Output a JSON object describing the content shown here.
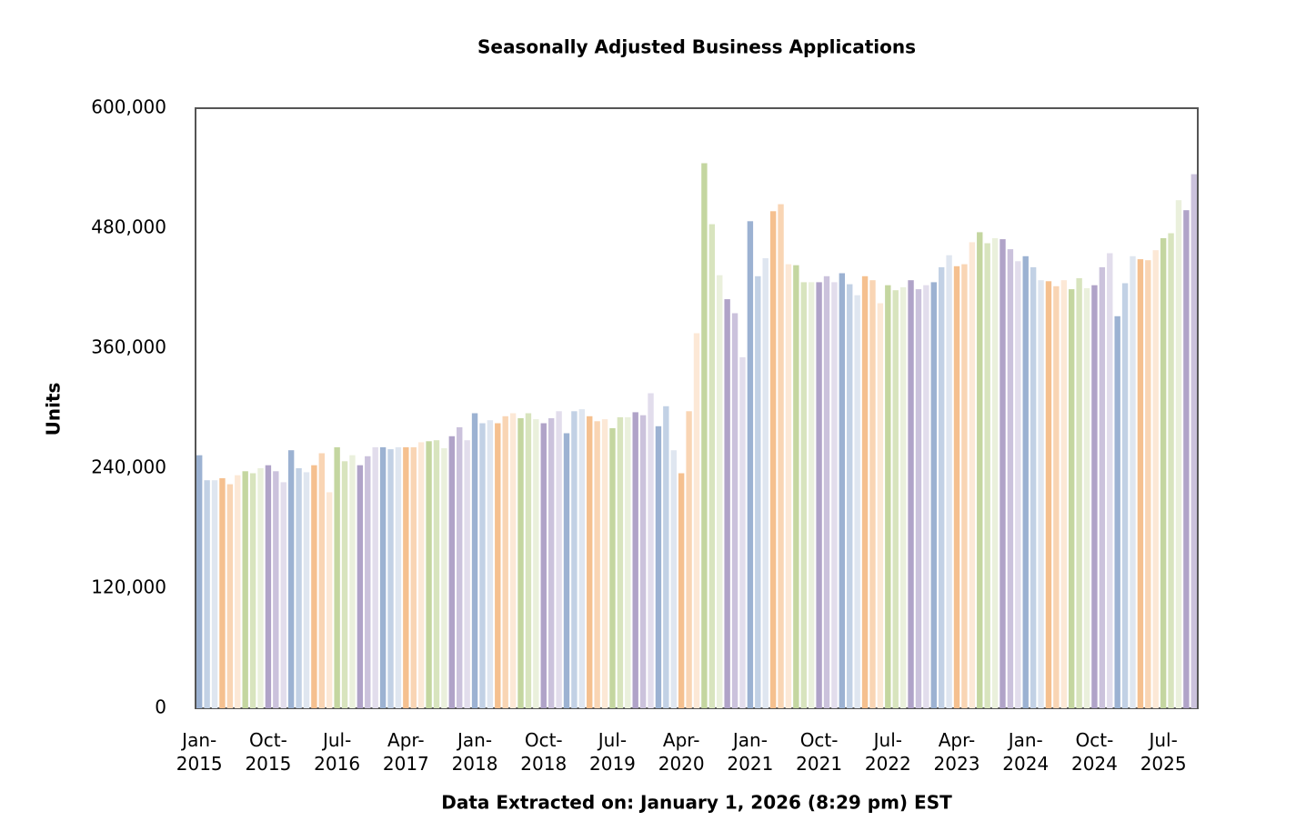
{
  "chart_data": {
    "type": "bar",
    "title": "Seasonally Adjusted Business Applications",
    "y_label": "Units",
    "footer": "Data Extracted on: January 1, 2026 (8:29 pm) EST",
    "ylim": [
      0,
      600000
    ],
    "yticks": [
      0,
      {
        "value": 120000,
        "label": "120,000"
      },
      {
        "value": 240000,
        "label": "240,000"
      },
      {
        "value": 360000,
        "label": "360,000"
      },
      {
        "value": 480000,
        "label": "480,000"
      },
      {
        "value": 600000,
        "label": "600,000"
      }
    ],
    "colors": [
      "#9cb2d2",
      "#c2d1e5",
      "#dfe6f0",
      "#f5c08f",
      "#f9d5b4",
      "#fce8d6",
      "#c4d6a0",
      "#d8e4be",
      "#eaf0dc",
      "#b0a3c8",
      "#cbc2dc",
      "#e2ddec"
    ],
    "categories": [
      "Jan-2015",
      null,
      null,
      null,
      null,
      null,
      null,
      null,
      null,
      "Oct-2015",
      null,
      null,
      null,
      null,
      null,
      null,
      null,
      null,
      "Jul-2016",
      null,
      null,
      null,
      null,
      null,
      null,
      null,
      null,
      "Apr-2017",
      null,
      null,
      null,
      null,
      null,
      null,
      null,
      null,
      "Jan-2018",
      null,
      null,
      null,
      null,
      null,
      null,
      null,
      null,
      "Oct-2018",
      null,
      null,
      null,
      null,
      null,
      null,
      null,
      null,
      "Jul-2019",
      null,
      null,
      null,
      null,
      null,
      null,
      null,
      null,
      "Apr-2020",
      null,
      null,
      null,
      null,
      null,
      null,
      null,
      null,
      "Jan-2021",
      null,
      null,
      null,
      null,
      null,
      null,
      null,
      null,
      "Oct-2021",
      null,
      null,
      null,
      null,
      null,
      null,
      null,
      null,
      "Jul-2022",
      null,
      null,
      null,
      null,
      null,
      null,
      null,
      null,
      "Apr-2023",
      null,
      null,
      null,
      null,
      null,
      null,
      null,
      null,
      "Jan-2024",
      null,
      null,
      null,
      null,
      null,
      null,
      null,
      null,
      "Oct-2024",
      null,
      null,
      null,
      null,
      null,
      null,
      null,
      null,
      "Jul-2025",
      null,
      null,
      null,
      null
    ],
    "values": [
      253000,
      228000,
      228000,
      230000,
      224000,
      233000,
      237000,
      235000,
      240000,
      243000,
      237000,
      226000,
      258000,
      240000,
      236000,
      243000,
      255000,
      216000,
      261000,
      247000,
      253000,
      243000,
      252000,
      261000,
      261000,
      259000,
      261000,
      261000,
      261000,
      266000,
      267000,
      268000,
      260000,
      272000,
      281000,
      268000,
      295000,
      285000,
      288000,
      285000,
      292000,
      295000,
      290000,
      295000,
      289000,
      285000,
      290000,
      297000,
      275000,
      297000,
      299000,
      292000,
      287000,
      289000,
      280000,
      291000,
      291000,
      296000,
      293000,
      315000,
      282000,
      302000,
      258000,
      235000,
      297000,
      375000,
      545000,
      484000,
      433000,
      409000,
      395000,
      351000,
      487000,
      432000,
      450000,
      497000,
      504000,
      444000,
      443000,
      426000,
      426000,
      426000,
      432000,
      426000,
      435000,
      424000,
      413000,
      432000,
      428000,
      405000,
      423000,
      418000,
      421000,
      428000,
      419000,
      423000,
      426000,
      441000,
      453000,
      442000,
      444000,
      466000,
      476000,
      465000,
      470000,
      469000,
      459000,
      447000,
      452000,
      441000,
      428000,
      427000,
      422000,
      428000,
      419000,
      430000,
      420000,
      423000,
      441000,
      455000,
      392000,
      425000,
      452000,
      449000,
      448000,
      458000,
      470000,
      475000,
      508000,
      498000,
      534000
    ]
  }
}
